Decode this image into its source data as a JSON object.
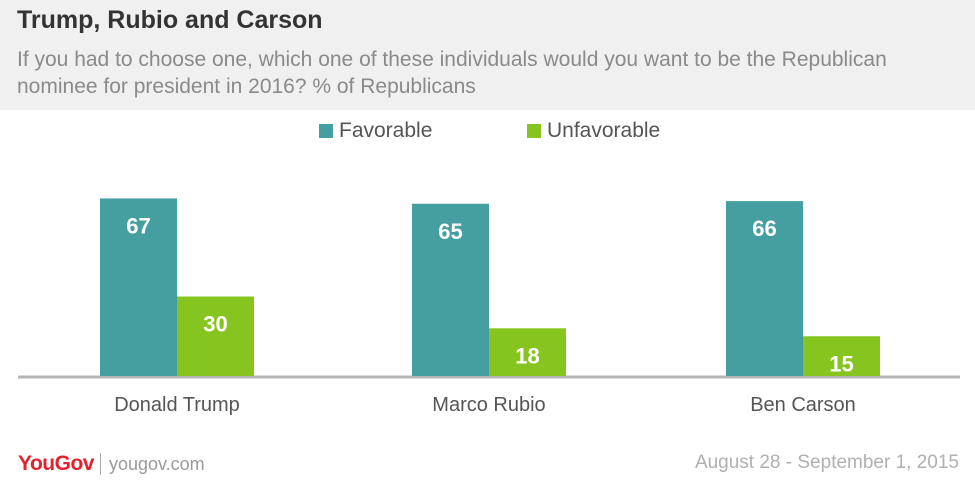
{
  "title": "Trump, Rubio and Carson",
  "subtitle": "If you had to choose one, which one of these individuals would you want to be the Republican nominee for president in 2016? % of Republicans",
  "footer": {
    "logo": "YouGov",
    "site": "yougov.com",
    "date": "August 28 - September 1, 2015"
  },
  "colors": {
    "favorable": "#459e9f",
    "unfavorable": "#86c51f",
    "logo": "#e5222c"
  },
  "chart_data": {
    "type": "bar",
    "title": "Trump, Rubio and Carson",
    "categories": [
      "Donald Trump",
      "Marco Rubio",
      "Ben Carson"
    ],
    "series": [
      {
        "name": "Favorable",
        "values": [
          67,
          65,
          66
        ],
        "color": "#459e9f"
      },
      {
        "name": "Unfavorable",
        "values": [
          30,
          18,
          15
        ],
        "color": "#86c51f"
      }
    ],
    "ylim": [
      0,
      70
    ],
    "grid": false,
    "legend": "top-center",
    "data_labels": true
  }
}
